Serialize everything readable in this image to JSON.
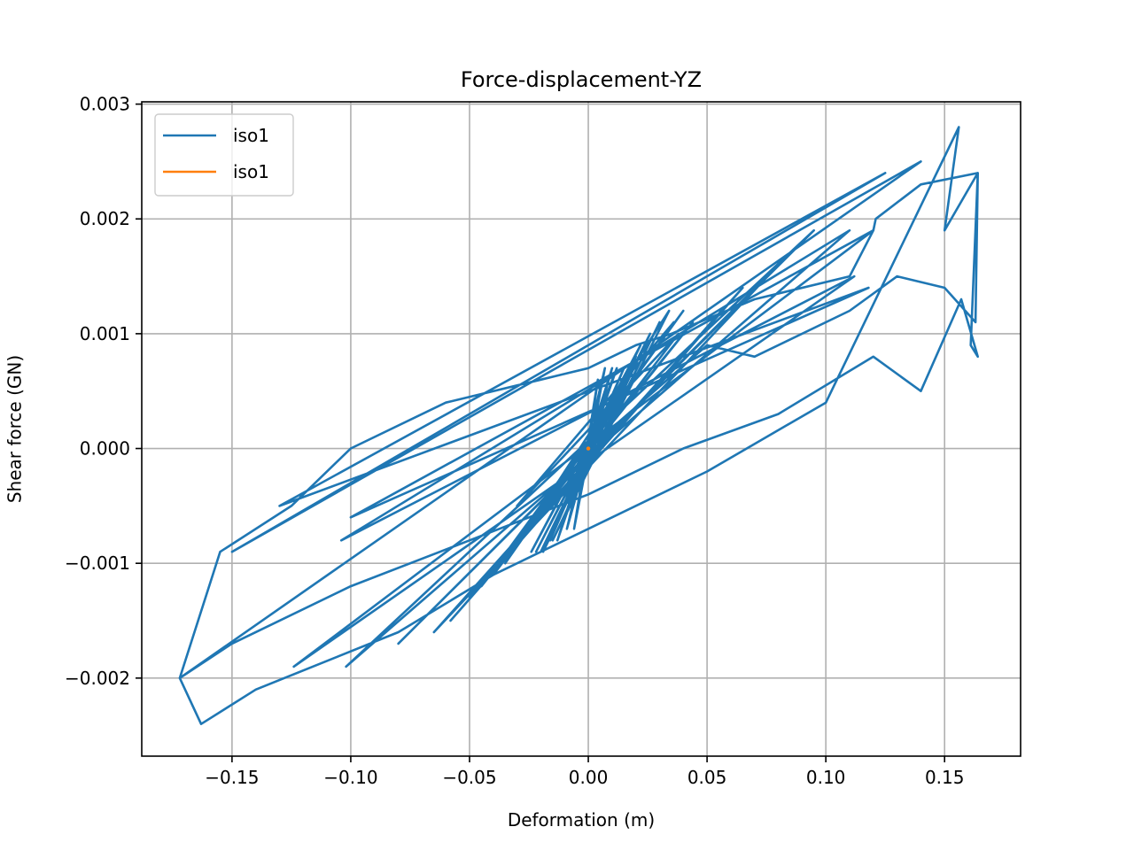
{
  "chart_data": {
    "type": "line",
    "title": "Force-displacement-YZ",
    "xlabel": "Deformation (m)",
    "ylabel": "Shear force (GN)",
    "xlim": [
      -0.188,
      0.182
    ],
    "ylim": [
      -0.00268,
      0.00302
    ],
    "xticks": [
      -0.15,
      -0.1,
      -0.05,
      0.0,
      0.05,
      0.1,
      0.15
    ],
    "xtick_labels": [
      "−0.15",
      "−0.10",
      "−0.05",
      "0.00",
      "0.05",
      "0.10",
      "0.15"
    ],
    "yticks": [
      -0.002,
      -0.001,
      0.0,
      0.001,
      0.002,
      0.003
    ],
    "ytick_labels": [
      "−0.002",
      "−0.001",
      "0.000",
      "0.001",
      "0.002",
      "0.003"
    ],
    "grid": true,
    "legend_position": "upper-left",
    "series": [
      {
        "name": "iso1",
        "color": "#1f77b4",
        "x": [
          0.0,
          0.004,
          -0.006,
          0.007,
          -0.009,
          0.01,
          -0.013,
          0.012,
          -0.016,
          0.015,
          -0.019,
          0.018,
          -0.022,
          0.02,
          -0.024,
          0.022,
          -0.02,
          0.026,
          -0.015,
          0.03,
          -0.01,
          0.034,
          -0.035,
          0.036,
          -0.03,
          0.038,
          -0.04,
          0.04,
          -0.045,
          0.044,
          -0.05,
          0.056,
          -0.058,
          0.065,
          -0.065,
          0.08,
          -0.08,
          0.095,
          -0.102,
          0.11,
          -0.104,
          0.112,
          -0.124,
          0.12,
          -0.1,
          0.118,
          -0.13,
          0.125,
          -0.15,
          0.14,
          -0.172,
          -0.163,
          -0.14,
          -0.08,
          -0.04,
          0.0,
          0.05,
          0.1,
          0.135,
          0.156,
          0.15,
          0.164,
          0.161,
          0.164,
          0.157,
          0.14,
          0.12,
          0.08,
          0.04,
          0.0,
          -0.05,
          -0.1,
          -0.15,
          -0.172,
          -0.155,
          -0.125,
          -0.1,
          -0.06,
          -0.02,
          0.0,
          0.02,
          0.035,
          0.07,
          0.11,
          0.12,
          0.121,
          0.14,
          0.164,
          0.163,
          0.15,
          0.13,
          0.11,
          0.07,
          0.05,
          0.0
        ],
        "y": [
          0.0,
          0.0006,
          -0.0007,
          0.0007,
          -0.0007,
          0.0007,
          -0.0008,
          0.0007,
          -0.0008,
          0.0007,
          -0.0009,
          0.0007,
          -0.0009,
          0.0008,
          -0.0009,
          0.0009,
          -0.0009,
          0.001,
          -0.0008,
          0.0011,
          -0.0006,
          0.0012,
          -0.001,
          0.0011,
          -0.0005,
          0.001,
          -0.0011,
          0.0012,
          -0.0012,
          0.0011,
          -0.0013,
          0.0012,
          -0.0015,
          0.0014,
          -0.0016,
          0.0016,
          -0.0017,
          0.0019,
          -0.0019,
          0.0019,
          -0.0008,
          0.0015,
          -0.0019,
          0.0019,
          -0.0006,
          0.0014,
          -0.0005,
          0.0024,
          -0.0009,
          0.0025,
          -0.002,
          -0.0024,
          -0.0021,
          -0.0016,
          -0.0011,
          -0.0007,
          -0.0002,
          0.0004,
          0.0019,
          0.0028,
          0.0019,
          0.0024,
          0.0009,
          0.0008,
          0.0013,
          0.0005,
          0.0008,
          0.0003,
          0.0,
          -0.0004,
          -0.0008,
          -0.0012,
          -0.0017,
          -0.002,
          -0.0009,
          -0.0005,
          0.0,
          0.0004,
          0.0006,
          0.0007,
          0.0009,
          0.001,
          0.0013,
          0.0015,
          0.0019,
          0.002,
          0.0023,
          0.0024,
          0.0011,
          0.0014,
          0.0015,
          0.0012,
          0.0008,
          0.0009,
          0.0
        ]
      },
      {
        "name": "iso1",
        "color": "#ff7f0e",
        "x": [
          0.0
        ],
        "y": [
          0.0
        ]
      }
    ]
  }
}
